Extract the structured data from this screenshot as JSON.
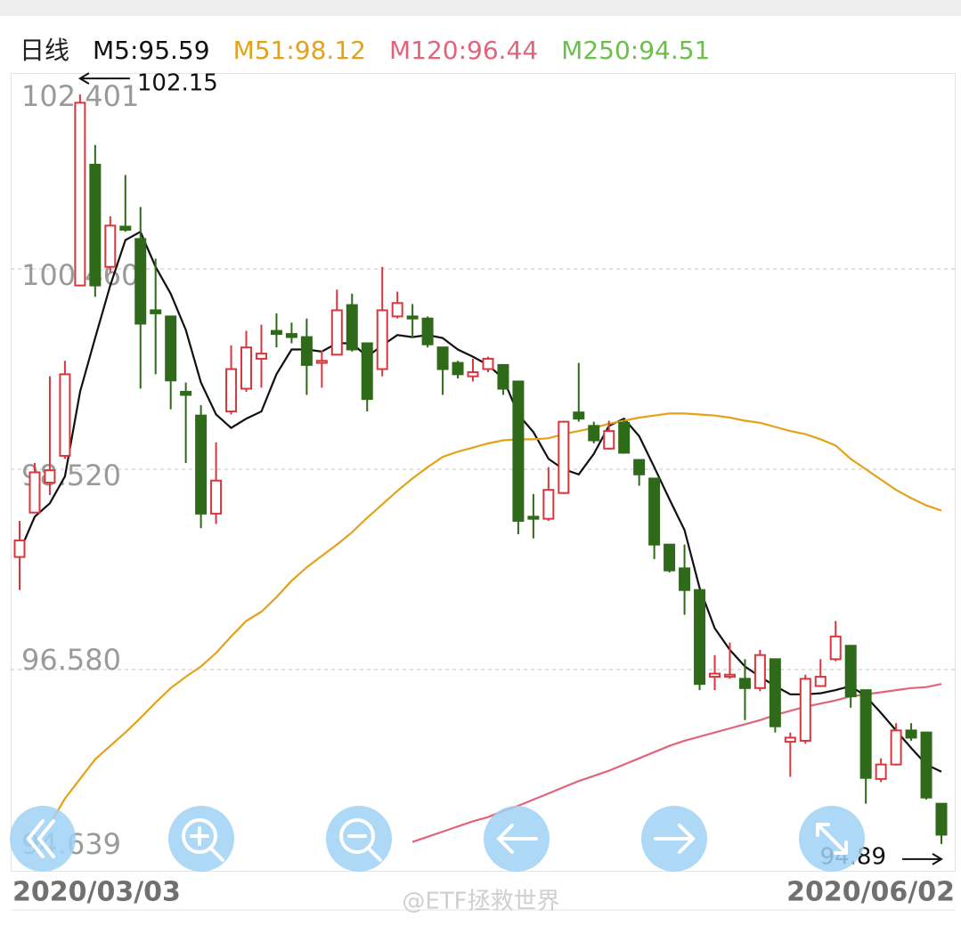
{
  "chart_data": {
    "type": "candlestick",
    "title": "日线",
    "categories": [
      "2020/03/03",
      null,
      null,
      null,
      null,
      null,
      null,
      null,
      null,
      null,
      null,
      null,
      null,
      null,
      null,
      null,
      null,
      null,
      null,
      null,
      null,
      null,
      null,
      null,
      null,
      null,
      null,
      null,
      null,
      null,
      null,
      null,
      null,
      null,
      null,
      null,
      null,
      null,
      null,
      null,
      null,
      null,
      null,
      null,
      null,
      null,
      null,
      null,
      null,
      null,
      null,
      null,
      null,
      null,
      null,
      null,
      null,
      null,
      null,
      null,
      null,
      "2020/06/02"
    ],
    "open": [
      97.67,
      98.1,
      98.39,
      98.65,
      100.3,
      101.47,
      100.48,
      100.87,
      100.75,
      100.06,
      100.0,
      99.27,
      99.04,
      98.09,
      99.08,
      99.3,
      99.59,
      99.86,
      99.83,
      99.8,
      99.55,
      99.63,
      100.11,
      99.74,
      99.49,
      100.0,
      100.0,
      99.98,
      99.7,
      99.55,
      99.42,
      99.49,
      99.53,
      99.37,
      98.06,
      98.04,
      98.29,
      99.07,
      98.94,
      98.72,
      98.97,
      98.61,
      98.43,
      97.79,
      97.56,
      97.35,
      96.51,
      96.51,
      96.49,
      96.4,
      96.68,
      95.88,
      95.89,
      96.42,
      96.68,
      96.81,
      96.38,
      95.52,
      95.66,
      95.99,
      95.97,
      95.28
    ],
    "high": [
      98.02,
      98.58,
      99.42,
      99.57,
      102.15,
      101.66,
      100.97,
      101.37,
      101.06,
      100.56,
      100.0,
      99.36,
      99.14,
      98.78,
      99.72,
      99.86,
      99.92,
      100.03,
      99.94,
      99.98,
      99.67,
      100.26,
      100.22,
      99.74,
      100.48,
      100.24,
      100.12,
      100.0,
      99.7,
      99.57,
      99.59,
      99.61,
      99.53,
      99.37,
      98.28,
      98.54,
      98.99,
      99.55,
      98.98,
      98.99,
      98.99,
      98.61,
      98.43,
      97.79,
      97.79,
      97.35,
      96.72,
      96.84,
      96.68,
      96.77,
      96.68,
      95.97,
      96.53,
      96.68,
      97.05,
      96.81,
      96.38,
      95.72,
      96.06,
      96.06,
      95.97,
      95.28
    ],
    "low": [
      97.35,
      98.1,
      98.27,
      98.62,
      100.29,
      100.19,
      100.43,
      100.82,
      99.3,
      99.44,
      99.1,
      98.58,
      97.95,
      97.99,
      99.05,
      99.27,
      99.31,
      99.7,
      99.74,
      99.24,
      99.31,
      99.63,
      99.66,
      99.08,
      99.42,
      99.98,
      99.79,
      99.7,
      99.24,
      99.4,
      99.37,
      99.46,
      99.24,
      97.89,
      97.85,
      98.02,
      98.28,
      98.98,
      98.77,
      98.71,
      98.67,
      98.36,
      97.65,
      97.52,
      97.11,
      96.38,
      96.38,
      96.49,
      96.09,
      96.37,
      95.97,
      95.54,
      95.86,
      96.41,
      96.66,
      96.21,
      95.28,
      95.49,
      95.65,
      95.89,
      95.32,
      94.89
    ],
    "close": [
      97.83,
      98.49,
      98.51,
      99.44,
      102.07,
      100.3,
      100.88,
      100.84,
      99.93,
      100.03,
      99.38,
      99.24,
      98.09,
      98.41,
      99.49,
      99.7,
      99.64,
      99.83,
      99.8,
      99.53,
      99.57,
      100.06,
      99.68,
      99.2,
      100.06,
      100.13,
      99.98,
      99.73,
      99.49,
      99.44,
      99.46,
      99.59,
      99.3,
      98.02,
      98.04,
      98.32,
      98.98,
      99.01,
      98.8,
      98.89,
      98.68,
      98.47,
      97.79,
      97.54,
      97.35,
      96.44,
      96.54,
      96.53,
      96.4,
      96.72,
      96.03,
      95.92,
      96.49,
      96.51,
      96.9,
      96.32,
      95.53,
      95.66,
      95.99,
      95.92,
      95.34,
      94.98
    ],
    "up_color": "#d9363e",
    "down_color": "#2f6a1a",
    "series": [
      {
        "name": "M5:95.59",
        "color": "#111111",
        "values": [
          97.72,
          98.06,
          98.19,
          98.45,
          99.27,
          99.79,
          100.3,
          100.74,
          100.82,
          100.48,
          100.22,
          99.87,
          99.36,
          99.05,
          98.92,
          99.01,
          99.08,
          99.44,
          99.68,
          99.68,
          99.66,
          99.74,
          99.74,
          99.61,
          99.72,
          99.82,
          99.8,
          99.82,
          99.79,
          99.68,
          99.61,
          99.53,
          99.4,
          99.05,
          98.88,
          98.62,
          98.52,
          98.47,
          98.67,
          98.94,
          99.01,
          98.84,
          98.54,
          98.23,
          97.93,
          97.37,
          96.98,
          96.77,
          96.61,
          96.51,
          96.42,
          96.34,
          96.34,
          96.35,
          96.38,
          96.42,
          96.32,
          96.16,
          95.99,
          95.82,
          95.66,
          95.59
        ]
      },
      {
        "name": "M51:98.12",
        "color": "#e3a21a",
        "values": [
          null,
          94.85,
          95.08,
          95.33,
          95.52,
          95.71,
          95.84,
          95.97,
          96.11,
          96.26,
          96.4,
          96.51,
          96.61,
          96.74,
          96.9,
          97.05,
          97.14,
          97.28,
          97.44,
          97.57,
          97.68,
          97.79,
          97.91,
          98.05,
          98.18,
          98.31,
          98.43,
          98.54,
          98.64,
          98.69,
          98.73,
          98.77,
          98.8,
          98.81,
          98.81,
          98.82,
          98.86,
          98.89,
          98.92,
          98.96,
          98.99,
          99.02,
          99.04,
          99.06,
          99.06,
          99.05,
          99.04,
          99.02,
          98.99,
          98.97,
          98.93,
          98.89,
          98.86,
          98.81,
          98.75,
          98.62,
          98.52,
          98.42,
          98.32,
          98.24,
          98.17,
          98.12
        ]
      },
      {
        "name": "M120:96.44",
        "color": "#e2647c",
        "values": [
          null,
          null,
          null,
          null,
          null,
          null,
          null,
          null,
          null,
          null,
          null,
          null,
          null,
          null,
          null,
          null,
          null,
          null,
          null,
          null,
          null,
          null,
          null,
          null,
          null,
          null,
          94.91,
          94.96,
          95.01,
          95.06,
          95.11,
          95.15,
          95.21,
          95.26,
          95.32,
          95.38,
          95.44,
          95.5,
          95.55,
          95.6,
          95.66,
          95.72,
          95.78,
          95.84,
          95.89,
          95.93,
          95.97,
          96.01,
          96.05,
          96.09,
          96.14,
          96.18,
          96.22,
          96.25,
          96.28,
          96.32,
          96.34,
          96.36,
          96.38,
          96.4,
          96.41,
          96.44
        ]
      }
    ],
    "legend_extra": [
      {
        "name": "M250:94.51",
        "color": "#6cbf4a"
      }
    ],
    "ylim": [
      94.639,
      102.401
    ],
    "yticks": [
      102.401,
      {
        "value": 100.46,
        "label": "100.460"
      },
      {
        "value": 98.52,
        "label": "98.520"
      },
      {
        "value": 96.58,
        "label": "96.580"
      },
      94.639
    ],
    "grid": true,
    "watermark": "@ETF拯救世界"
  }
}
